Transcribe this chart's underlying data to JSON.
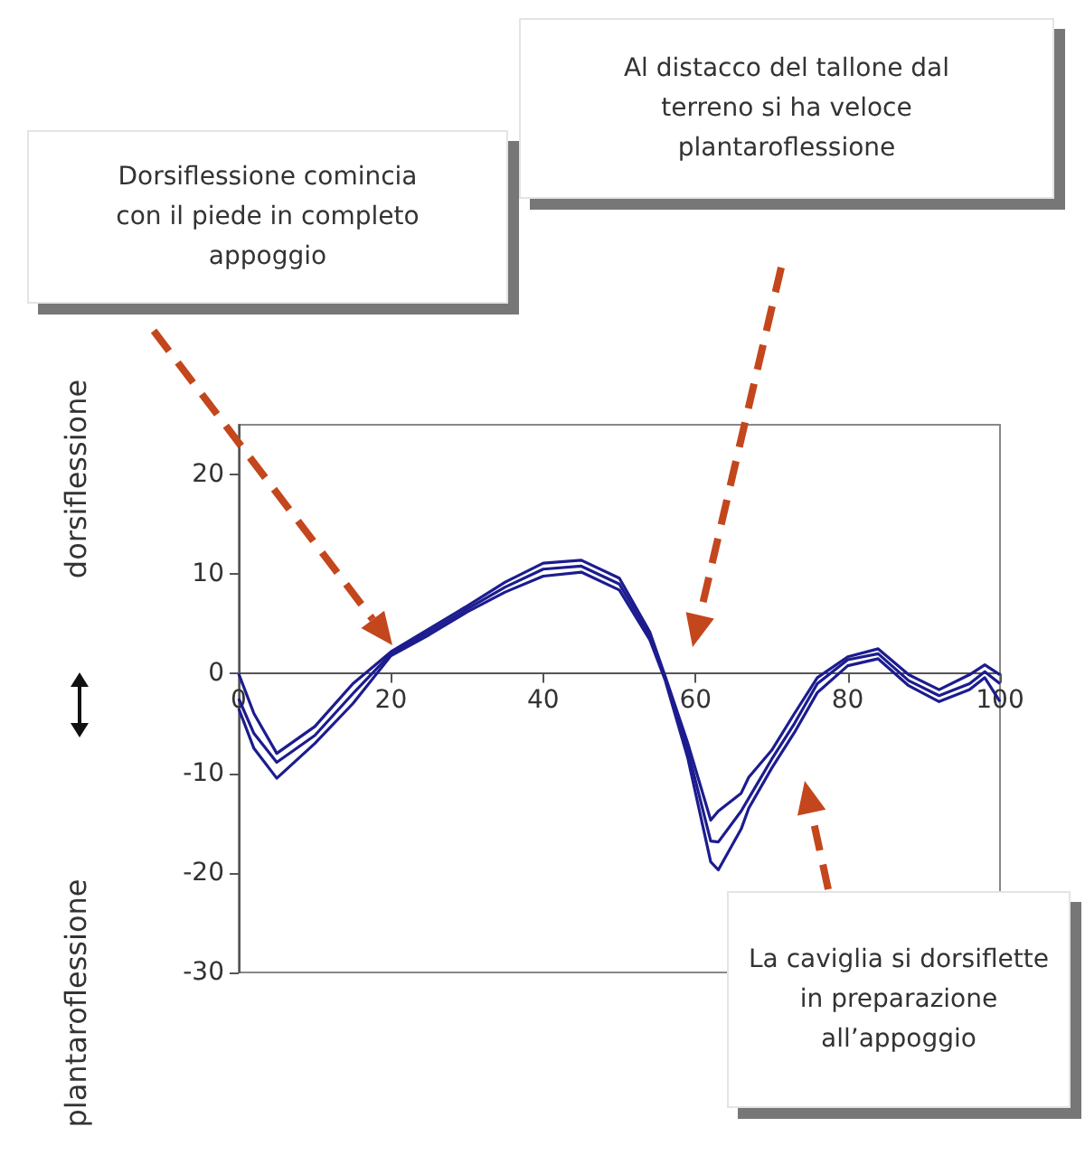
{
  "chart_data": {
    "type": "line",
    "ylabel": "dorsiflessione",
    "x": [
      0,
      2,
      5,
      10,
      15,
      20,
      25,
      30,
      35,
      40,
      45,
      50,
      54,
      56,
      59,
      62,
      63,
      66,
      67,
      70,
      73,
      76,
      80,
      84,
      88,
      92,
      96,
      98,
      100
    ],
    "series": [
      {
        "color": "#1c1c8f",
        "values": [
          0,
          -4,
          -8,
          -5.3,
          -1,
          2.2,
          4.5,
          6.8,
          9.2,
          11.1,
          11.4,
          9.6,
          4.2,
          -0.2,
          -7,
          -14.7,
          -13.8,
          -12,
          -10.4,
          -7.7,
          -4,
          -0.4,
          1.7,
          2.5,
          -0.1,
          -1.6,
          -0.1,
          0.9,
          -0.1
        ]
      },
      {
        "color": "#1c1c8f",
        "values": [
          -2.5,
          -6,
          -8.9,
          -6.2,
          -2,
          2,
          4.2,
          6.5,
          8.7,
          10.5,
          10.8,
          9,
          3.8,
          -0.4,
          -7.7,
          -16.8,
          -16.9,
          -13.8,
          -12.5,
          -8.6,
          -5,
          -1,
          1.4,
          2,
          -0.7,
          -2.2,
          -1,
          0.2,
          -1
        ]
      },
      {
        "color": "#1c1c8f",
        "values": [
          -3.5,
          -7.5,
          -10.5,
          -7,
          -3,
          1.8,
          3.9,
          6.2,
          8.2,
          9.8,
          10.2,
          8.4,
          3.4,
          -0.6,
          -8.5,
          -18.9,
          -19.7,
          -15.6,
          -13.5,
          -9.5,
          -5.9,
          -1.9,
          0.8,
          1.5,
          -1.2,
          -2.8,
          -1.6,
          -0.4,
          -2.8
        ]
      }
    ],
    "xlim": [
      0,
      100
    ],
    "xticks": [
      0,
      20,
      40,
      60,
      80,
      100
    ],
    "ylim": [
      -30,
      25
    ],
    "yticks": [
      -30,
      -20,
      -10,
      0,
      10,
      20
    ],
    "marker": "none",
    "line_style": "solid",
    "annotations": [
      "Dorsiflessione comincia con il piede in completo appoggio",
      "Al distacco del tallone dal terreno si ha veloce plantaroflessione",
      "La caviglia si dorsiflette in preparazione all’appoggio",
      "plantaroflessione"
    ]
  }
}
